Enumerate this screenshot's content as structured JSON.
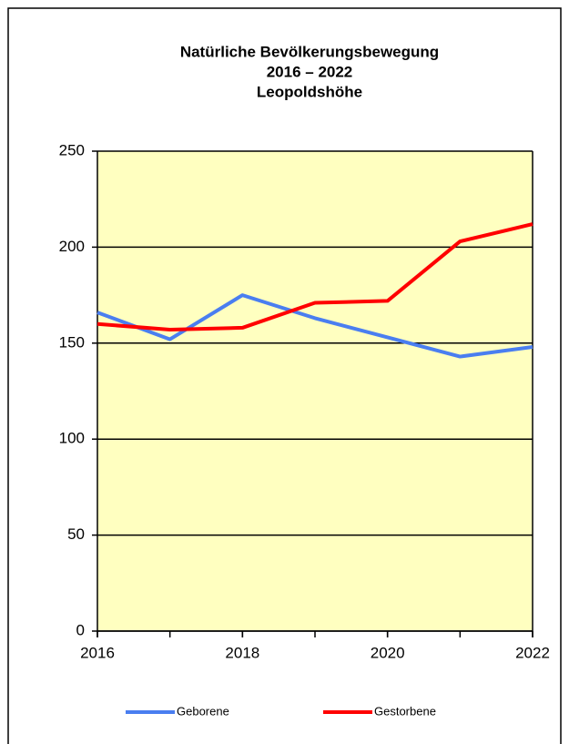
{
  "chart_data": {
    "type": "line",
    "title": [
      "Natürliche Bevölkerungsbewegung",
      "2016 – 2022",
      "Leopoldshöhe"
    ],
    "x": [
      2016,
      2017,
      2018,
      2019,
      2020,
      2021,
      2022
    ],
    "series": [
      {
        "name": "Geborene",
        "color": "#4a7ef0",
        "values": [
          166,
          152,
          175,
          163,
          153,
          143,
          148
        ]
      },
      {
        "name": "Gestorbene",
        "color": "#ff0000",
        "values": [
          160,
          157,
          158,
          171,
          172,
          203,
          212
        ]
      }
    ],
    "xlim": [
      2016,
      2022
    ],
    "xticks": [
      2016,
      2018,
      2020,
      2022
    ],
    "ylim": [
      0,
      250
    ],
    "yticks": [
      0,
      50,
      100,
      150,
      200,
      250
    ],
    "grid": true,
    "legend": "bottom",
    "background": "#ffffc0"
  }
}
